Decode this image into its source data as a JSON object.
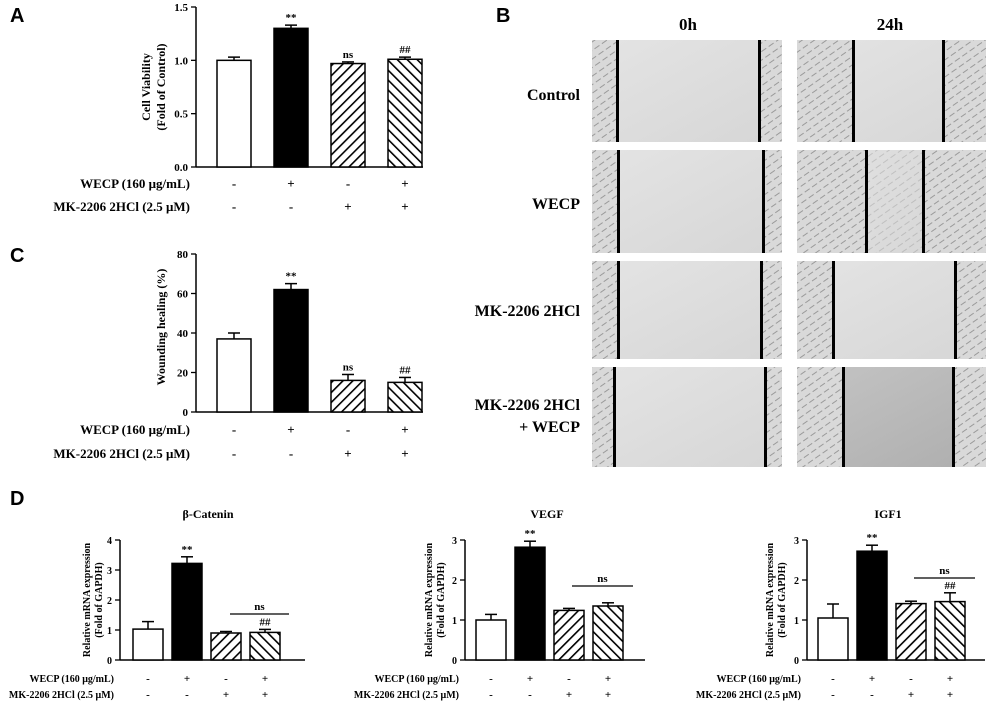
{
  "panels": {
    "A": {
      "letter": "A"
    },
    "B": {
      "letter": "B",
      "col_labels": [
        "0h",
        "24h"
      ],
      "row_labels": [
        "Control",
        "WECP",
        "MK-2206 2HCl",
        "MK-2206 2HCl",
        "+ WECP"
      ]
    },
    "C": {
      "letter": "C"
    },
    "D": {
      "letter": "D"
    }
  },
  "condition_labels": {
    "wecp": "WECP (160 μg/mL)",
    "mk": "MK-2206 2HCl (2.5 μM)"
  },
  "treatment_signs": {
    "wecp": [
      "-",
      "+",
      "-",
      "+"
    ],
    "mk": [
      "-",
      "-",
      "+",
      "+"
    ]
  },
  "fills": {
    "open": "#ffffff",
    "solid": "#000000",
    "hatch_a": "hatch-a",
    "hatch_b": "hatch-b"
  },
  "chart_data": [
    {
      "id": "A",
      "type": "bar",
      "title": "",
      "ylabel": "Cell Viability",
      "ylabel2": "(Fold of Control)",
      "ylim": [
        0,
        1.5
      ],
      "yticks": [
        "0.0",
        "0.5",
        "1.0",
        "1.5"
      ],
      "ytick_values": [
        0,
        0.5,
        1.0,
        1.5
      ],
      "values": [
        1.0,
        1.3,
        0.97,
        1.01
      ],
      "errors": [
        0.03,
        0.03,
        0.015,
        0.02
      ],
      "annotations": [
        "",
        "**",
        "ns",
        "##"
      ]
    },
    {
      "id": "C",
      "type": "bar",
      "title": "",
      "ylabel": "Wounding healing (%)",
      "ylim": [
        0,
        80
      ],
      "yticks": [
        "0",
        "20",
        "40",
        "60",
        "80"
      ],
      "ytick_values": [
        0,
        20,
        40,
        60,
        80
      ],
      "values": [
        37,
        62,
        16,
        15
      ],
      "errors": [
        3,
        3,
        3,
        2.5
      ],
      "annotations": [
        "",
        "**",
        "ns",
        "##"
      ]
    },
    {
      "id": "D1",
      "type": "bar",
      "title": "β-Catenin",
      "ylabel": "Relative mRNA expression",
      "ylabel2": "(Fold of GAPDH)",
      "ylim": [
        0,
        4
      ],
      "yticks": [
        "0",
        "1",
        "2",
        "3",
        "4"
      ],
      "ytick_values": [
        0,
        1,
        2,
        3,
        4
      ],
      "values": [
        1.03,
        3.22,
        0.9,
        0.92
      ],
      "errors": [
        0.25,
        0.22,
        0.05,
        0.1
      ],
      "annotations": [
        "",
        "**",
        "",
        "##"
      ],
      "bracket_label": "ns"
    },
    {
      "id": "D2",
      "type": "bar",
      "title": "VEGF",
      "ylabel": "Relative mRNA expression",
      "ylabel2": "(Fold of GAPDH)",
      "ylim": [
        0,
        3
      ],
      "yticks": [
        "0",
        "1",
        "2",
        "3"
      ],
      "ytick_values": [
        0,
        1,
        2,
        3
      ],
      "values": [
        1.0,
        2.82,
        1.24,
        1.35
      ],
      "errors": [
        0.14,
        0.15,
        0.05,
        0.08
      ],
      "annotations": [
        "",
        "**",
        "",
        ""
      ],
      "bracket_label": "ns"
    },
    {
      "id": "D3",
      "type": "bar",
      "title": "IGF1",
      "ylabel": "Relative mRNA expression",
      "ylabel2": "(Fold of GAPDH)",
      "ylim": [
        0,
        3
      ],
      "yticks": [
        "0",
        "1",
        "2",
        "3"
      ],
      "ytick_values": [
        0,
        1,
        2,
        3
      ],
      "values": [
        1.05,
        2.72,
        1.41,
        1.46
      ],
      "errors": [
        0.35,
        0.15,
        0.06,
        0.22
      ],
      "annotations": [
        "",
        "**",
        "",
        "##"
      ],
      "bracket_label": "ns"
    }
  ]
}
